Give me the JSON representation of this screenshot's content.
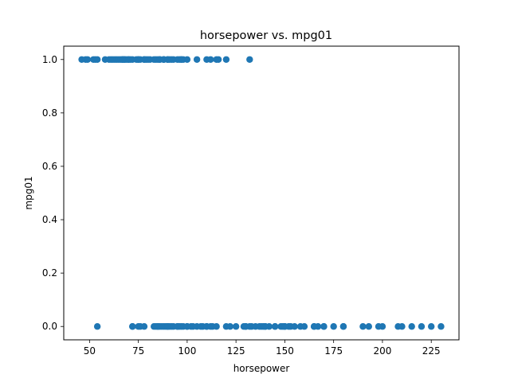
{
  "chart_data": {
    "type": "scatter",
    "title": "horsepower vs. mpg01",
    "xlabel": "horsepower",
    "ylabel": "mpg01",
    "xlim": [
      36.8,
      239.2
    ],
    "ylim": [
      -0.05,
      1.05
    ],
    "xticks": [
      50,
      75,
      100,
      125,
      150,
      175,
      200,
      225
    ],
    "yticks": [
      0.0,
      0.2,
      0.4,
      0.6,
      0.8,
      1.0
    ],
    "ytick_labels": [
      "0.0",
      "0.2",
      "0.4",
      "0.6",
      "0.8",
      "1.0"
    ],
    "grid": false,
    "marker_color": "#1f77b4",
    "series": [
      {
        "x": [
          46,
          48,
          49,
          52,
          53,
          54,
          58,
          60,
          61,
          62,
          63,
          64,
          65,
          66,
          67,
          67,
          68,
          68,
          69,
          70,
          70,
          71,
          72,
          74,
          75,
          75,
          76,
          78,
          79,
          80,
          81,
          83,
          84,
          85,
          86,
          86,
          88,
          88,
          90,
          92,
          93,
          95,
          96,
          97,
          98,
          100,
          105,
          110,
          112,
          115,
          116,
          120,
          132,
          88,
          90,
          91,
          97,
          67,
          78
        ],
        "y": [
          1,
          1,
          1,
          1,
          1,
          1,
          1,
          1,
          1,
          1,
          1,
          1,
          1,
          1,
          1,
          1,
          1,
          1,
          1,
          1,
          1,
          1,
          1,
          1,
          1,
          1,
          1,
          1,
          1,
          1,
          1,
          1,
          1,
          1,
          1,
          1,
          1,
          1,
          1,
          1,
          1,
          1,
          1,
          1,
          1,
          1,
          1,
          1,
          1,
          1,
          1,
          1,
          1,
          1,
          1,
          1,
          1,
          1,
          1
        ]
      },
      {
        "x": [
          54,
          72,
          72,
          75,
          76,
          78,
          83,
          84,
          85,
          86,
          87,
          88,
          89,
          90,
          91,
          92,
          93,
          95,
          96,
          97,
          98,
          100,
          102,
          103,
          105,
          107,
          108,
          110,
          112,
          113,
          115,
          120,
          122,
          125,
          129,
          130,
          132,
          133,
          135,
          137,
          138,
          139,
          140,
          142,
          145,
          148,
          149,
          150,
          152,
          153,
          155,
          158,
          160,
          165,
          167,
          170,
          175,
          180,
          190,
          193,
          198,
          200,
          208,
          210,
          215,
          220,
          225,
          230,
          150,
          145,
          140,
          130,
          110,
          100,
          95,
          90,
          85,
          180,
          170,
          165
        ],
        "y": [
          0,
          0,
          0,
          0,
          0,
          0,
          0,
          0,
          0,
          0,
          0,
          0,
          0,
          0,
          0,
          0,
          0,
          0,
          0,
          0,
          0,
          0,
          0,
          0,
          0,
          0,
          0,
          0,
          0,
          0,
          0,
          0,
          0,
          0,
          0,
          0,
          0,
          0,
          0,
          0,
          0,
          0,
          0,
          0,
          0,
          0,
          0,
          0,
          0,
          0,
          0,
          0,
          0,
          0,
          0,
          0,
          0,
          0,
          0,
          0,
          0,
          0,
          0,
          0,
          0,
          0,
          0,
          0,
          0,
          0,
          0,
          0,
          0,
          0,
          0,
          0,
          0,
          0,
          0,
          0
        ]
      }
    ]
  }
}
